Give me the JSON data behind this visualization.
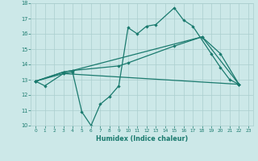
{
  "xlabel": "Humidex (Indice chaleur)",
  "line_color": "#1a7a6e",
  "bg_color": "#cce8e8",
  "grid_color": "#aacece",
  "ylim": [
    10,
    18
  ],
  "xlim": [
    -0.5,
    23.5
  ],
  "yticks": [
    10,
    11,
    12,
    13,
    14,
    15,
    16,
    17,
    18
  ],
  "xticks": [
    0,
    1,
    2,
    3,
    4,
    5,
    6,
    7,
    8,
    9,
    10,
    11,
    12,
    13,
    14,
    15,
    16,
    17,
    18,
    19,
    20,
    21,
    22,
    23
  ],
  "line1_x": [
    0,
    1,
    3,
    4,
    5,
    6,
    7,
    8,
    9,
    10,
    11,
    12,
    13,
    15,
    16,
    17,
    19,
    20,
    21,
    22
  ],
  "line1_y": [
    12.9,
    12.6,
    13.4,
    13.5,
    10.9,
    10.0,
    11.4,
    11.9,
    12.6,
    16.4,
    16.0,
    16.5,
    16.6,
    17.7,
    16.9,
    16.5,
    14.7,
    13.8,
    13.0,
    12.7
  ],
  "line2_x": [
    0,
    3,
    4,
    9,
    10,
    15,
    18,
    20,
    22
  ],
  "line2_y": [
    12.9,
    13.5,
    13.6,
    13.9,
    14.1,
    15.2,
    15.8,
    14.7,
    12.7
  ],
  "line3_x": [
    0,
    3,
    4,
    18,
    22
  ],
  "line3_y": [
    12.9,
    13.5,
    13.6,
    15.8,
    12.7
  ],
  "line4_x": [
    0,
    3,
    22
  ],
  "line4_y": [
    12.9,
    13.4,
    12.7
  ]
}
